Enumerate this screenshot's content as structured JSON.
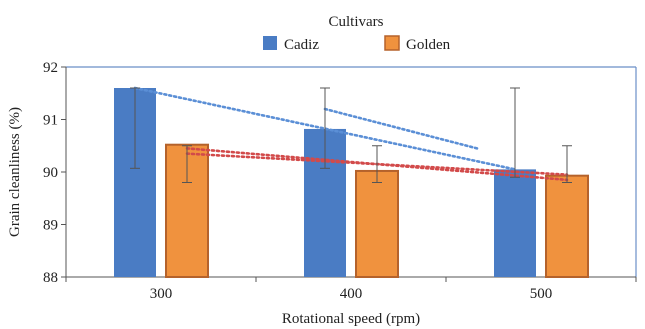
{
  "chart_data": {
    "type": "bar",
    "legend_title": "Cultivars",
    "legend_position": "top-center",
    "xlabel": "Rotational speed (rpm)",
    "ylabel": "Grain cleanliness (%)",
    "categories": [
      "300",
      "400",
      "500"
    ],
    "ylim": [
      88,
      92
    ],
    "yticks": [
      "88",
      "89",
      "90",
      "91",
      "92"
    ],
    "grid": false,
    "series": [
      {
        "name": "Cadiz",
        "color": "#4a7cc4",
        "values": [
          91.6,
          90.82,
          90.05
        ],
        "error_low": [
          90.07,
          90.07,
          89.9
        ],
        "error_high": [
          91.6,
          91.6,
          91.6
        ],
        "trend_line": {
          "color": "#5b8fd6",
          "style": "dotted",
          "segments": [
            [
              300,
              91.6,
              500,
              90.05
            ],
            [
              400,
              91.2,
              480,
              90.45
            ]
          ]
        }
      },
      {
        "name": "Golden",
        "color": "#f0923e",
        "values": [
          90.52,
          90.02,
          89.93
        ],
        "error_low": [
          89.8,
          89.8,
          89.8
        ],
        "error_high": [
          90.5,
          90.5,
          90.5
        ],
        "trend_line": {
          "color": "#d24a4a",
          "style": "dotted",
          "segments": [
            [
              300,
              90.45,
              500,
              89.85
            ],
            [
              300,
              90.35,
              500,
              89.95
            ]
          ]
        }
      }
    ]
  }
}
